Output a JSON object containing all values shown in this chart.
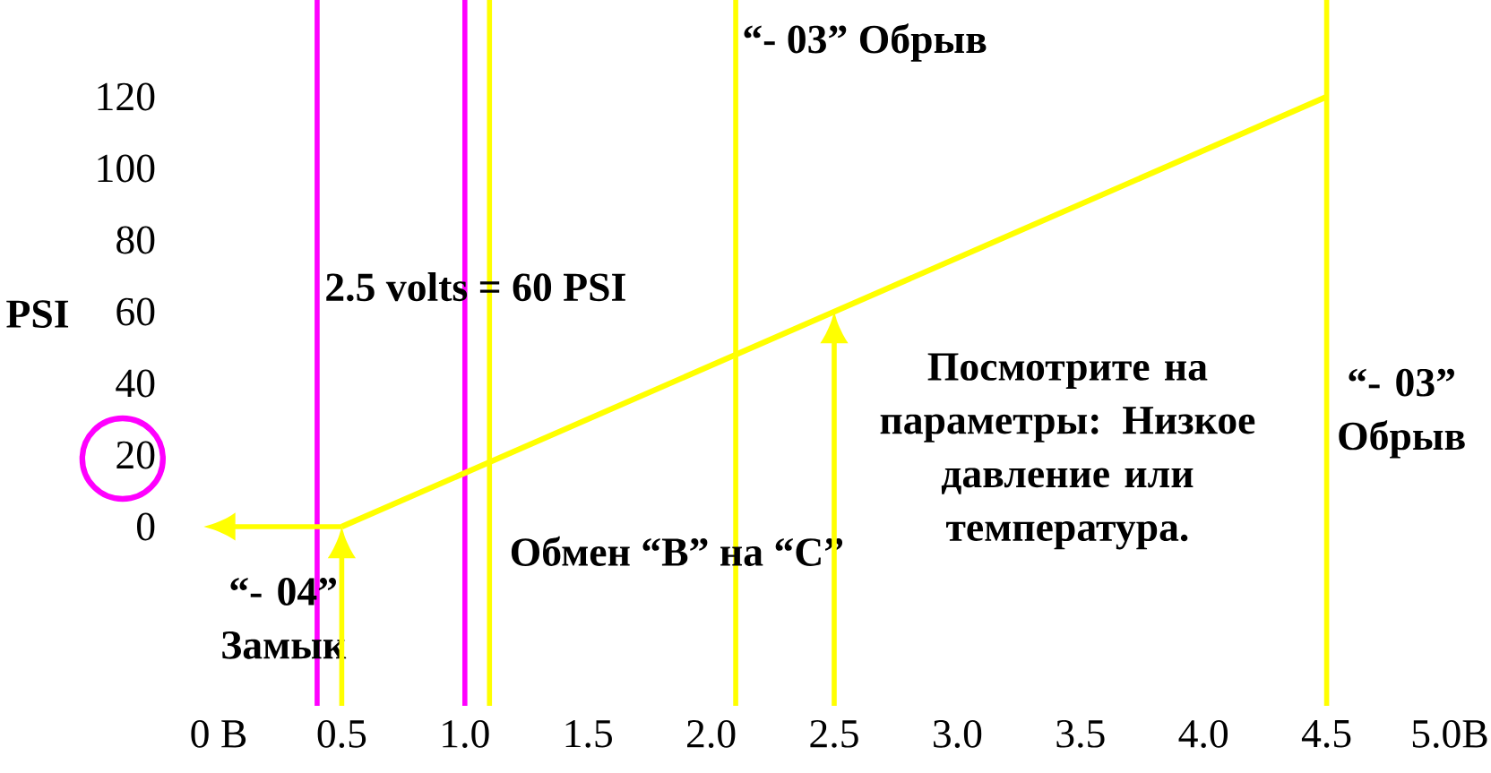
{
  "chart_data": {
    "type": "line",
    "ylabel": "PSI",
    "x": [
      0.5,
      2.5,
      4.5
    ],
    "values": [
      0,
      60,
      120
    ],
    "color": "#ffff00",
    "xlim": [
      0,
      5
    ],
    "ylim": [
      -50,
      147
    ],
    "xticks": [
      {
        "value": 0,
        "label": "0 B"
      },
      {
        "value": 0.5,
        "label": "0.5"
      },
      {
        "value": 1,
        "label": "1.0"
      },
      {
        "value": 1.5,
        "label": "1.5"
      },
      {
        "value": 2,
        "label": "2.0"
      },
      {
        "value": 2.5,
        "label": "2.5"
      },
      {
        "value": 3,
        "label": "3.0"
      },
      {
        "value": 3.5,
        "label": "3.5"
      },
      {
        "value": 4,
        "label": "4.0"
      },
      {
        "value": 4.5,
        "label": "4.5"
      },
      {
        "value": 5,
        "label": "5.0B"
      }
    ],
    "yticks": [
      0,
      20,
      40,
      60,
      80,
      100,
      120
    ],
    "ref_lines": [
      {
        "axis": "x",
        "value": 1.1,
        "color": "#ffff00"
      },
      {
        "axis": "x",
        "value": 2.1,
        "color": "#ffff00"
      },
      {
        "axis": "x",
        "value": 0.4,
        "color": "#ff00ff"
      },
      {
        "axis": "x",
        "value": 1.0,
        "color": "#ff00ff"
      },
      {
        "axis": "x",
        "value": 4.5,
        "color": "#ffff00"
      }
    ],
    "annotations": [
      "2.5 volts = 60 PSI",
      "“- 03”  Обрыв",
      "“- 04” Замык",
      "Обмен “B” на “C”",
      "Посмотрите на параметры: Низкое давление или температура.",
      "“- 03” Обрыв"
    ]
  }
}
